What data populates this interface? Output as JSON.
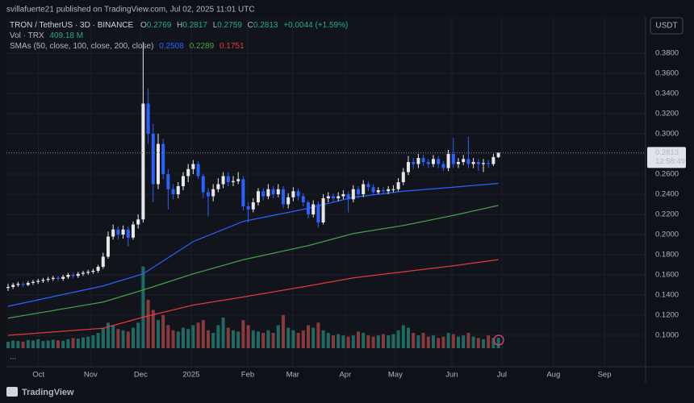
{
  "top_bar": {
    "text": "svillafuerte21 published on TradingView.com, Jul 02, 2025 11:01 UTC"
  },
  "footer": {
    "brand": "TradingView"
  },
  "chart_data": {
    "type": "candlestick",
    "symbol": "TRON / TetherUS · 3D · BINANCE",
    "ohlc_prefixes": {
      "open": "O",
      "high": "H",
      "low": "L",
      "close": "C"
    },
    "change": "+0.0044 (+1.59%)",
    "volume_title": "Vol · TRX",
    "volume_last_label": "409.18 M",
    "sma_title": "SMAs (50, close, 100, close, 200, close)",
    "currency": "USDT",
    "countdown": "12:58:49",
    "more": "...",
    "colors": {
      "up": "#e8e8e8",
      "down": "#2962ff",
      "volume_up": "#1f6b63",
      "volume_down": "#8a3a3c",
      "change": "#22ab94"
    },
    "grid": true,
    "xlim": [
      -0.32,
      127.42
    ],
    "xticks": [
      {
        "value": 6.1,
        "label": "Oct"
      },
      {
        "value": 16.5,
        "label": "Nov"
      },
      {
        "value": 26.5,
        "label": "Dec"
      },
      {
        "value": 36.6,
        "label": "2025"
      },
      {
        "value": 47.9,
        "label": "Feb"
      },
      {
        "value": 56.9,
        "label": "Mar"
      },
      {
        "value": 67.4,
        "label": "Apr"
      },
      {
        "value": 77.4,
        "label": "May"
      },
      {
        "value": 88.7,
        "label": "Jun"
      },
      {
        "value": 98.7,
        "label": "Jul"
      },
      {
        "value": 109.0,
        "label": "Aug"
      },
      {
        "value": 119.2,
        "label": "Sep"
      }
    ],
    "ylim": [
      0.0688,
      0.4168
    ],
    "yticks": [
      {
        "value": 0.1,
        "label": "0.1000"
      },
      {
        "value": 0.12,
        "label": "0.1200"
      },
      {
        "value": 0.14,
        "label": "0.1400"
      },
      {
        "value": 0.16,
        "label": "0.1600"
      },
      {
        "value": 0.18,
        "label": "0.1800"
      },
      {
        "value": 0.2,
        "label": "0.2000"
      },
      {
        "value": 0.22,
        "label": "0.2200"
      },
      {
        "value": 0.24,
        "label": "0.2400"
      },
      {
        "value": 0.26,
        "label": "0.2600"
      },
      {
        "value": 0.28,
        "label": "0.2800"
      },
      {
        "value": 0.3,
        "label": "0.3000"
      },
      {
        "value": 0.32,
        "label": "0.3200"
      },
      {
        "value": 0.34,
        "label": "0.3400"
      },
      {
        "value": 0.36,
        "label": "0.3600"
      },
      {
        "value": 0.38,
        "label": "0.3800"
      }
    ],
    "volume_lim": [
      0,
      13000
    ],
    "candles": {
      "open": [
        0.147,
        0.148,
        0.15,
        0.151,
        0.15,
        0.152,
        0.153,
        0.154,
        0.155,
        0.156,
        0.157,
        0.156,
        0.158,
        0.16,
        0.159,
        0.161,
        0.162,
        0.163,
        0.164,
        0.168,
        0.178,
        0.198,
        0.205,
        0.2,
        0.205,
        0.197,
        0.21,
        0.215,
        0.33,
        0.3,
        0.25,
        0.29,
        0.26,
        0.245,
        0.24,
        0.248,
        0.258,
        0.265,
        0.27,
        0.258,
        0.242,
        0.238,
        0.245,
        0.25,
        0.258,
        0.252,
        0.253,
        0.255,
        0.228,
        0.225,
        0.232,
        0.243,
        0.238,
        0.245,
        0.24,
        0.245,
        0.23,
        0.237,
        0.243,
        0.238,
        0.232,
        0.22,
        0.23,
        0.212,
        0.236,
        0.238,
        0.236,
        0.238,
        0.24,
        0.235,
        0.245,
        0.24,
        0.25,
        0.247,
        0.242,
        0.244,
        0.243,
        0.245,
        0.245,
        0.252,
        0.262,
        0.272,
        0.27,
        0.276,
        0.272,
        0.27,
        0.275,
        0.27,
        0.266,
        0.28,
        0.27,
        0.272,
        0.275,
        0.27,
        0.272,
        0.27,
        0.271,
        0.27,
        0.2769
      ],
      "high": [
        0.151,
        0.152,
        0.153,
        0.153,
        0.154,
        0.155,
        0.156,
        0.157,
        0.158,
        0.159,
        0.159,
        0.16,
        0.162,
        0.162,
        0.163,
        0.164,
        0.165,
        0.166,
        0.17,
        0.182,
        0.203,
        0.21,
        0.208,
        0.209,
        0.208,
        0.213,
        0.22,
        0.391,
        0.345,
        0.31,
        0.3,
        0.295,
        0.265,
        0.25,
        0.252,
        0.262,
        0.27,
        0.274,
        0.273,
        0.26,
        0.246,
        0.25,
        0.256,
        0.262,
        0.262,
        0.258,
        0.262,
        0.258,
        0.232,
        0.236,
        0.246,
        0.246,
        0.25,
        0.248,
        0.25,
        0.248,
        0.241,
        0.247,
        0.246,
        0.241,
        0.234,
        0.234,
        0.233,
        0.24,
        0.242,
        0.241,
        0.242,
        0.244,
        0.243,
        0.249,
        0.248,
        0.254,
        0.253,
        0.25,
        0.247,
        0.247,
        0.248,
        0.249,
        0.256,
        0.266,
        0.278,
        0.276,
        0.28,
        0.279,
        0.275,
        0.279,
        0.278,
        0.273,
        0.284,
        0.296,
        0.276,
        0.279,
        0.297,
        0.276,
        0.275,
        0.275,
        0.274,
        0.28,
        0.2817
      ],
      "low": [
        0.144,
        0.146,
        0.148,
        0.148,
        0.149,
        0.15,
        0.151,
        0.152,
        0.153,
        0.154,
        0.154,
        0.154,
        0.156,
        0.157,
        0.157,
        0.159,
        0.16,
        0.161,
        0.162,
        0.166,
        0.176,
        0.195,
        0.195,
        0.196,
        0.188,
        0.195,
        0.206,
        0.212,
        0.29,
        0.232,
        0.245,
        0.255,
        0.225,
        0.235,
        0.236,
        0.244,
        0.252,
        0.26,
        0.255,
        0.236,
        0.218,
        0.233,
        0.242,
        0.246,
        0.248,
        0.248,
        0.25,
        0.224,
        0.212,
        0.222,
        0.229,
        0.234,
        0.235,
        0.236,
        0.237,
        0.226,
        0.226,
        0.233,
        0.234,
        0.228,
        0.216,
        0.217,
        0.207,
        0.21,
        0.232,
        0.232,
        0.233,
        0.235,
        0.222,
        0.232,
        0.236,
        0.237,
        0.243,
        0.239,
        0.24,
        0.24,
        0.24,
        0.242,
        0.243,
        0.249,
        0.259,
        0.265,
        0.266,
        0.268,
        0.266,
        0.267,
        0.266,
        0.263,
        0.263,
        0.266,
        0.266,
        0.269,
        0.266,
        0.266,
        0.263,
        0.262,
        0.266,
        0.268,
        0.2759
      ],
      "close": [
        0.148,
        0.15,
        0.151,
        0.15,
        0.152,
        0.153,
        0.154,
        0.155,
        0.156,
        0.157,
        0.156,
        0.158,
        0.16,
        0.159,
        0.161,
        0.162,
        0.163,
        0.164,
        0.168,
        0.178,
        0.198,
        0.205,
        0.2,
        0.205,
        0.197,
        0.21,
        0.215,
        0.33,
        0.3,
        0.25,
        0.29,
        0.26,
        0.245,
        0.24,
        0.248,
        0.258,
        0.265,
        0.27,
        0.258,
        0.242,
        0.238,
        0.245,
        0.25,
        0.258,
        0.252,
        0.253,
        0.255,
        0.228,
        0.225,
        0.232,
        0.243,
        0.238,
        0.245,
        0.24,
        0.245,
        0.23,
        0.237,
        0.243,
        0.238,
        0.232,
        0.22,
        0.23,
        0.212,
        0.236,
        0.238,
        0.236,
        0.238,
        0.24,
        0.235,
        0.245,
        0.24,
        0.25,
        0.247,
        0.242,
        0.244,
        0.243,
        0.245,
        0.245,
        0.252,
        0.262,
        0.272,
        0.27,
        0.276,
        0.272,
        0.27,
        0.275,
        0.27,
        0.266,
        0.28,
        0.27,
        0.272,
        0.275,
        0.27,
        0.272,
        0.27,
        0.271,
        0.27,
        0.2769,
        0.2813
      ],
      "volume": [
        250,
        300,
        280,
        260,
        320,
        300,
        350,
        280,
        300,
        330,
        310,
        290,
        350,
        400,
        380,
        420,
        450,
        500,
        600,
        800,
        1000,
        900,
        750,
        700,
        650,
        800,
        1000,
        3200,
        1900,
        1500,
        1100,
        1300,
        900,
        700,
        650,
        800,
        750,
        900,
        1000,
        1100,
        700,
        600,
        900,
        1200,
        800,
        700,
        650,
        1100,
        900,
        700,
        650,
        600,
        700,
        600,
        900,
        1300,
        800,
        700,
        600,
        700,
        900,
        800,
        1000,
        700,
        600,
        500,
        550,
        500,
        450,
        500,
        650,
        600,
        500,
        450,
        500,
        550,
        500,
        550,
        700,
        900,
        800,
        600,
        500,
        600,
        450,
        500,
        400,
        450,
        600,
        550,
        450,
        500,
        600,
        450,
        400,
        350,
        500,
        400,
        409.18
      ]
    },
    "smas": [
      {
        "color": "#2962ff",
        "x": [
          0,
          19,
          27,
          37,
          47,
          60,
          69,
          79,
          89,
          98
        ],
        "values": [
          0.1288,
          0.149,
          0.161,
          0.193,
          0.213,
          0.226,
          0.237,
          0.243,
          0.247,
          0.2508
        ]
      },
      {
        "color": "#43a047",
        "x": [
          0,
          19,
          27,
          37,
          47,
          60,
          69,
          79,
          89,
          98
        ],
        "values": [
          0.117,
          0.133,
          0.145,
          0.161,
          0.175,
          0.189,
          0.201,
          0.209,
          0.219,
          0.2289
        ]
      },
      {
        "color": "#e53935",
        "x": [
          0,
          19,
          27,
          37,
          47,
          60,
          69,
          79,
          89,
          98
        ],
        "values": [
          0.1,
          0.107,
          0.118,
          0.13,
          0.138,
          0.149,
          0.157,
          0.163,
          0.169,
          0.1751
        ]
      }
    ]
  }
}
